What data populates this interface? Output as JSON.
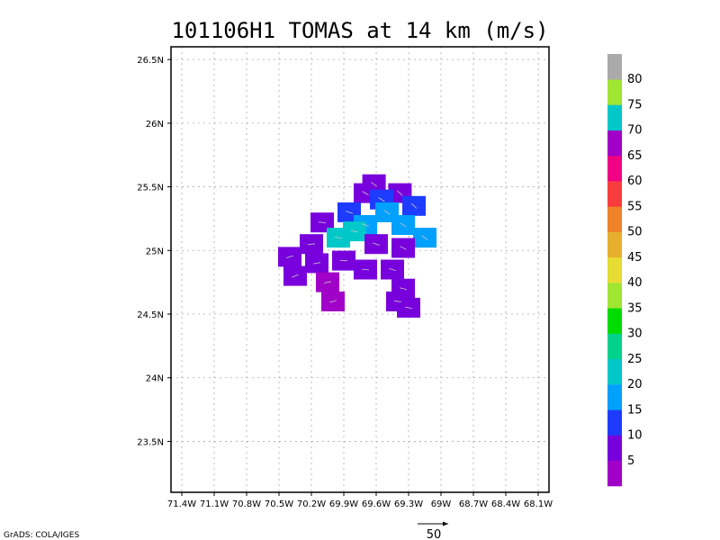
{
  "chart_data": {
    "type": "heatmap",
    "title": "101106H1 TOMAS at 14 km (m/s)",
    "xlabel": "",
    "ylabel": "",
    "x_range_lon": [
      -71.5,
      -68.0
    ],
    "y_range_lat": [
      23.1,
      26.6
    ],
    "x_ticks": [
      "71.4W",
      "71.1W",
      "70.8W",
      "70.5W",
      "70.2W",
      "69.9W",
      "69.6W",
      "69.3W",
      "69W",
      "68.7W",
      "68.4W",
      "68.1W"
    ],
    "x_tick_values": [
      -71.4,
      -71.1,
      -70.8,
      -70.5,
      -70.2,
      -69.9,
      -69.6,
      -69.3,
      -69.0,
      -68.7,
      -68.4,
      -68.1
    ],
    "y_ticks": [
      "23.5N",
      "24N",
      "24.5N",
      "25N",
      "25.5N",
      "26N",
      "26.5N"
    ],
    "y_tick_values": [
      23.5,
      24.0,
      24.5,
      25.0,
      25.5,
      26.0,
      26.5
    ],
    "grid": true,
    "colorbar": {
      "labels": [
        "5",
        "10",
        "15",
        "20",
        "25",
        "30",
        "35",
        "40",
        "45",
        "50",
        "55",
        "60",
        "65",
        "70",
        "75",
        "80"
      ],
      "colors": [
        "#a000c8",
        "#7800dc",
        "#1e3cff",
        "#00a0ff",
        "#00c8c8",
        "#00d28c",
        "#00dc00",
        "#a0e632",
        "#e6dc32",
        "#e6af2d",
        "#f08228",
        "#fa3c3c",
        "#f00082",
        "#a000c8",
        "#00c8c8",
        "#a0e632",
        "#aaaaaa"
      ]
    },
    "series": [
      {
        "type": "wind_field",
        "bins": [
          {
            "min": 0,
            "max": 5,
            "color": "#a000c8"
          },
          {
            "min": 5,
            "max": 10,
            "color": "#7800dc"
          },
          {
            "min": 10,
            "max": 15,
            "color": "#1e3cff"
          },
          {
            "min": 15,
            "max": 20,
            "color": "#00a0ff"
          },
          {
            "min": 20,
            "max": 25,
            "color": "#00c8c8"
          }
        ],
        "cells": [
          {
            "lon": -69.62,
            "lat": 25.52,
            "v": 7
          },
          {
            "lon": -69.38,
            "lat": 25.45,
            "v": 8
          },
          {
            "lon": -69.7,
            "lat": 25.45,
            "v": 6
          },
          {
            "lon": -69.55,
            "lat": 25.4,
            "v": 12
          },
          {
            "lon": -69.25,
            "lat": 25.35,
            "v": 13
          },
          {
            "lon": -69.85,
            "lat": 25.3,
            "v": 11
          },
          {
            "lon": -69.5,
            "lat": 25.3,
            "v": 16
          },
          {
            "lon": -70.1,
            "lat": 25.22,
            "v": 6
          },
          {
            "lon": -69.7,
            "lat": 25.2,
            "v": 17
          },
          {
            "lon": -69.35,
            "lat": 25.2,
            "v": 18
          },
          {
            "lon": -69.15,
            "lat": 25.1,
            "v": 17
          },
          {
            "lon": -69.95,
            "lat": 25.1,
            "v": 21
          },
          {
            "lon": -69.8,
            "lat": 25.15,
            "v": 22
          },
          {
            "lon": -69.6,
            "lat": 25.05,
            "v": 9
          },
          {
            "lon": -69.35,
            "lat": 25.02,
            "v": 8
          },
          {
            "lon": -70.2,
            "lat": 25.05,
            "v": 6
          },
          {
            "lon": -70.4,
            "lat": 24.95,
            "v": 5
          },
          {
            "lon": -70.15,
            "lat": 24.9,
            "v": 7
          },
          {
            "lon": -69.9,
            "lat": 24.92,
            "v": 8
          },
          {
            "lon": -69.7,
            "lat": 24.85,
            "v": 6
          },
          {
            "lon": -69.45,
            "lat": 24.85,
            "v": 7
          },
          {
            "lon": -70.35,
            "lat": 24.8,
            "v": 5
          },
          {
            "lon": -70.05,
            "lat": 24.75,
            "v": 4
          },
          {
            "lon": -69.35,
            "lat": 24.7,
            "v": 6
          },
          {
            "lon": -69.4,
            "lat": 24.6,
            "v": 5
          },
          {
            "lon": -70.0,
            "lat": 24.6,
            "v": 4
          },
          {
            "lon": -69.3,
            "lat": 24.55,
            "v": 5
          }
        ]
      }
    ],
    "vector_reference": {
      "value": "50",
      "unit": "m/s"
    },
    "credit": "GrADS: COLA/IGES"
  }
}
